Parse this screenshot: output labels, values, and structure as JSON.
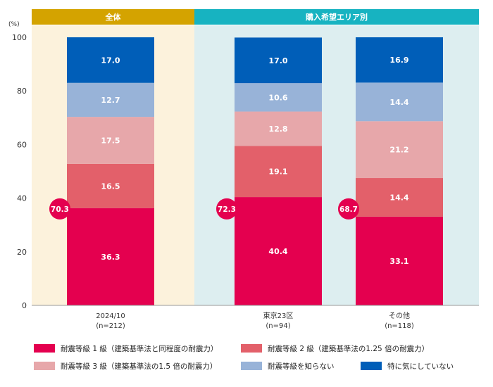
{
  "chart_data": {
    "type": "bar",
    "stacked": true,
    "unit_label": "(%)",
    "ylim": [
      0,
      100
    ],
    "yticks": [
      0,
      20,
      40,
      60,
      80,
      100
    ],
    "groups": [
      {
        "label": "全体",
        "bg_color": "#fcf2dc",
        "header_color": "#d4a300"
      },
      {
        "label": "購入希望エリア別",
        "bg_color": "#ddeef0",
        "header_color": "#17b3c1"
      }
    ],
    "categories": [
      {
        "label": "2024/10",
        "sublabel": "(n=212)",
        "total_label": "70.3"
      },
      {
        "label": "東京23区",
        "sublabel": "(n=94)",
        "total_label": "72.3"
      },
      {
        "label": "その他",
        "sublabel": "(n=118)",
        "total_label": "68.7"
      }
    ],
    "series": [
      {
        "name": "耐震等級 1 級（建築基準法と同程度の耐震力）",
        "color": "#e4004f",
        "values": [
          36.3,
          40.4,
          33.1
        ]
      },
      {
        "name": "耐震等級 2 級（建築基準法の1.25 倍の耐震力）",
        "color": "#e3606a",
        "values": [
          16.5,
          19.1,
          14.4
        ]
      },
      {
        "name": "耐震等級 3 級（建築基準法の1.5 倍の耐震力）",
        "color": "#e7a7aa",
        "values": [
          17.5,
          12.8,
          21.2
        ]
      },
      {
        "name": "耐震等級を知らない",
        "color": "#98b3d8",
        "values": [
          12.7,
          10.6,
          14.4
        ]
      },
      {
        "name": "特に気にしていない",
        "color": "#005eb8",
        "values": [
          17.0,
          17.0,
          16.9
        ]
      }
    ]
  }
}
